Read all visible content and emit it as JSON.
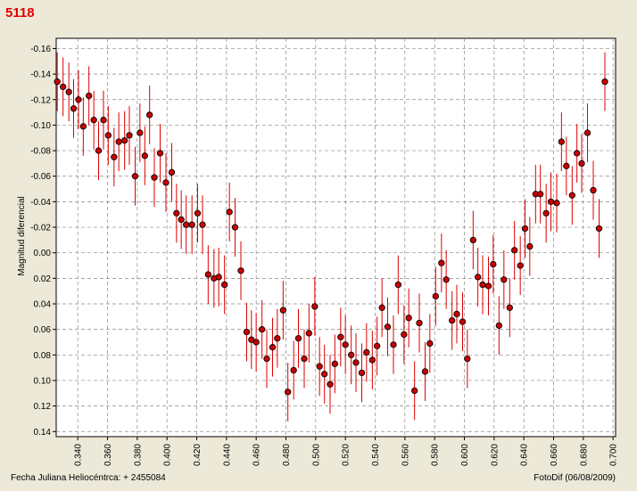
{
  "header": {
    "title": "5118"
  },
  "footer": {
    "xlabel": "Fecha Juliana Heliocéntrca:  + 2455084",
    "credit": "FotoDif (06/08/2009)"
  },
  "colors": {
    "background": "#ece9d8",
    "plot_bg": "#ffffff",
    "marker": "#cc0000",
    "errorbar": "#dd0000",
    "title": "#e00000",
    "grid": "#888888"
  },
  "chart_data": {
    "type": "scatter",
    "title": "5118",
    "xlabel": "Fecha Juliana Heliocéntrca:  + 2455084",
    "ylabel": "Magnitud diferencial",
    "xlim": [
      0.3255,
      0.7017
    ],
    "ylim": [
      0.144,
      -0.168
    ],
    "y_inverted": true,
    "grid": true,
    "xticks": [
      "0.340",
      "0.360",
      "0.380",
      "0.400",
      "0.420",
      "0.440",
      "0.460",
      "0.480",
      "0.500",
      "0.520",
      "0.540",
      "0.560",
      "0.580",
      "0.600",
      "0.620",
      "0.640",
      "0.660",
      "0.680",
      "0.700"
    ],
    "yticks": [
      "-0.16",
      "-0.14",
      "-0.12",
      "-0.10",
      "-0.08",
      "-0.06",
      "-0.04",
      "-0.02",
      "0.00",
      "0.02",
      "0.04",
      "0.06",
      "0.08",
      "0.10",
      "0.12",
      "0.14"
    ],
    "error_bar": 0.023,
    "points": [
      [
        0.3262,
        -0.134
      ],
      [
        0.3301,
        -0.13
      ],
      [
        0.334,
        -0.126
      ],
      [
        0.3372,
        -0.113
      ],
      [
        0.3405,
        -0.12
      ],
      [
        0.3437,
        -0.099
      ],
      [
        0.3475,
        -0.123
      ],
      [
        0.3508,
        -0.104
      ],
      [
        0.354,
        -0.08
      ],
      [
        0.3573,
        -0.104
      ],
      [
        0.3605,
        -0.092
      ],
      [
        0.3644,
        -0.075
      ],
      [
        0.3676,
        -0.087
      ],
      [
        0.3715,
        -0.088
      ],
      [
        0.3747,
        -0.092
      ],
      [
        0.3786,
        -0.06
      ],
      [
        0.3818,
        -0.094
      ],
      [
        0.3851,
        -0.076
      ],
      [
        0.3883,
        -0.108
      ],
      [
        0.3915,
        -0.059
      ],
      [
        0.3954,
        -0.078
      ],
      [
        0.3993,
        -0.055
      ],
      [
        0.4032,
        -0.063
      ],
      [
        0.4064,
        -0.031
      ],
      [
        0.4096,
        -0.026
      ],
      [
        0.4129,
        -0.022
      ],
      [
        0.4168,
        -0.022
      ],
      [
        0.4206,
        -0.031
      ],
      [
        0.4239,
        -0.022
      ],
      [
        0.4277,
        0.017
      ],
      [
        0.4316,
        0.02
      ],
      [
        0.4348,
        0.019
      ],
      [
        0.4387,
        0.025
      ],
      [
        0.442,
        -0.032
      ],
      [
        0.4458,
        -0.02
      ],
      [
        0.4497,
        0.014
      ],
      [
        0.4536,
        0.062
      ],
      [
        0.4568,
        0.068
      ],
      [
        0.46,
        0.07
      ],
      [
        0.4639,
        0.06
      ],
      [
        0.4671,
        0.083
      ],
      [
        0.471,
        0.074
      ],
      [
        0.4742,
        0.067
      ],
      [
        0.4781,
        0.045
      ],
      [
        0.4813,
        0.109
      ],
      [
        0.4852,
        0.092
      ],
      [
        0.4884,
        0.067
      ],
      [
        0.4923,
        0.083
      ],
      [
        0.4955,
        0.063
      ],
      [
        0.4994,
        0.042
      ],
      [
        0.5026,
        0.089
      ],
      [
        0.5059,
        0.095
      ],
      [
        0.5097,
        0.103
      ],
      [
        0.5129,
        0.087
      ],
      [
        0.5168,
        0.066
      ],
      [
        0.52,
        0.072
      ],
      [
        0.5239,
        0.08
      ],
      [
        0.5271,
        0.086
      ],
      [
        0.531,
        0.094
      ],
      [
        0.5342,
        0.078
      ],
      [
        0.5381,
        0.084
      ],
      [
        0.5413,
        0.073
      ],
      [
        0.5446,
        0.043
      ],
      [
        0.5484,
        0.058
      ],
      [
        0.5523,
        0.072
      ],
      [
        0.5555,
        0.025
      ],
      [
        0.5594,
        0.064
      ],
      [
        0.5626,
        0.051
      ],
      [
        0.5665,
        0.108
      ],
      [
        0.5697,
        0.055
      ],
      [
        0.5736,
        0.093
      ],
      [
        0.5768,
        0.071
      ],
      [
        0.5807,
        0.034
      ],
      [
        0.5846,
        0.008
      ],
      [
        0.5878,
        0.021
      ],
      [
        0.5917,
        0.053
      ],
      [
        0.5949,
        0.048
      ],
      [
        0.5988,
        0.054
      ],
      [
        0.602,
        0.083
      ],
      [
        0.6059,
        -0.01
      ],
      [
        0.6091,
        0.019
      ],
      [
        0.6123,
        0.025
      ],
      [
        0.6162,
        0.026
      ],
      [
        0.6194,
        0.009
      ],
      [
        0.6233,
        0.057
      ],
      [
        0.6266,
        0.021
      ],
      [
        0.6305,
        0.043
      ],
      [
        0.6337,
        -0.002
      ],
      [
        0.6376,
        0.01
      ],
      [
        0.6408,
        -0.019
      ],
      [
        0.644,
        -0.005
      ],
      [
        0.6479,
        -0.046
      ],
      [
        0.6511,
        -0.046
      ],
      [
        0.655,
        -0.031
      ],
      [
        0.6582,
        -0.04
      ],
      [
        0.6621,
        -0.039
      ],
      [
        0.6653,
        -0.087
      ],
      [
        0.6686,
        -0.068
      ],
      [
        0.6725,
        -0.045
      ],
      [
        0.6757,
        -0.078
      ],
      [
        0.6789,
        -0.07
      ],
      [
        0.6828,
        -0.094
      ],
      [
        0.6867,
        -0.049
      ],
      [
        0.6906,
        -0.019
      ],
      [
        0.6945,
        -0.134
      ]
    ]
  }
}
